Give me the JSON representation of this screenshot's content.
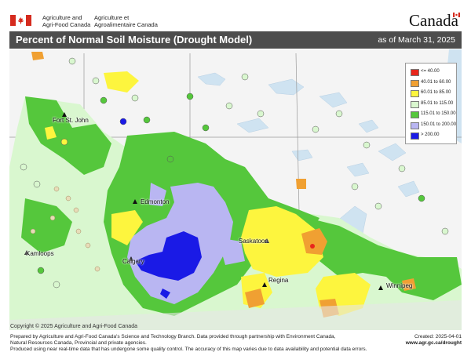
{
  "header": {
    "dept_en_line1": "Agriculture and",
    "dept_en_line2": "Agri-Food Canada",
    "dept_fr_line1": "Agriculture et",
    "dept_fr_line2": "Agroalimentaire Canada",
    "wordmark": "Canada"
  },
  "title": "Percent of Normal Soil Moisture (Drought Model)",
  "date": "as of March 31, 2025",
  "legend": [
    {
      "label": "<= 40.00",
      "color": "#e8261c"
    },
    {
      "label": "40.01  to  60.00",
      "color": "#f0a032"
    },
    {
      "label": "60.01  to  85.00",
      "color": "#fdf53e"
    },
    {
      "label": "85.01  to  115.00",
      "color": "#d9f7cf"
    },
    {
      "label": "115.01  to  150.00",
      "color": "#55c73c"
    },
    {
      "label": "150.01  to  200.00",
      "color": "#b9b6f2"
    },
    {
      "label": "> 200.00",
      "color": "#1a1ae6"
    }
  ],
  "cities": [
    {
      "name": "Fort St. John"
    },
    {
      "name": "Edmonton"
    },
    {
      "name": "Kamloops"
    },
    {
      "name": "Calgary"
    },
    {
      "name": "Saskatoon"
    },
    {
      "name": "Regina"
    },
    {
      "name": "Winnipeg"
    }
  ],
  "copyright": "Copyright © 2025 Agriculture and Agri-Food Canada",
  "credits": {
    "line1": "Prepared by Agriculture and Agri-Food Canada's Science and Technology Branch. Data provided through partnership with Environment Canada,",
    "line2": "Natural Resources Canada, Provincial and private agencies.",
    "line3": "Produced using near real-time data that has undergone some quality control. The accuracy of this map varies due to data availability and potential data errors."
  },
  "created": "Created: 2025-04-01",
  "url": "www.agr.gc.ca/drought"
}
